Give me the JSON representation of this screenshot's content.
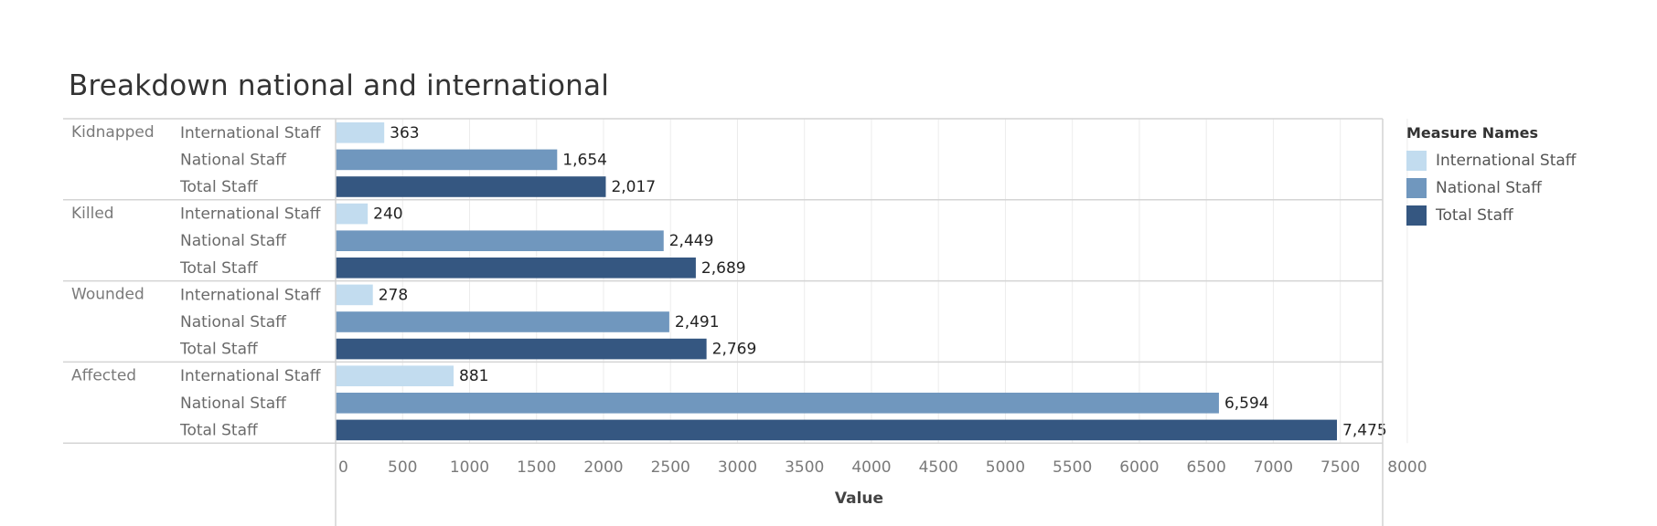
{
  "title": "Breakdown national and international",
  "chart_data": {
    "type": "bar",
    "orientation": "horizontal",
    "groups": [
      {
        "name": "Kidnapped",
        "rows": [
          {
            "label": "International Staff",
            "value": 363,
            "display": "363"
          },
          {
            "label": "National Staff",
            "value": 1654,
            "display": "1,654"
          },
          {
            "label": "Total Staff",
            "value": 2017,
            "display": "2,017"
          }
        ]
      },
      {
        "name": "Killed",
        "rows": [
          {
            "label": "International Staff",
            "value": 240,
            "display": "240"
          },
          {
            "label": "National Staff",
            "value": 2449,
            "display": "2,449"
          },
          {
            "label": "Total Staff",
            "value": 2689,
            "display": "2,689"
          }
        ]
      },
      {
        "name": "Wounded",
        "rows": [
          {
            "label": "International Staff",
            "value": 278,
            "display": "278"
          },
          {
            "label": "National Staff",
            "value": 2491,
            "display": "2,491"
          },
          {
            "label": "Total Staff",
            "value": 2769,
            "display": "2,769"
          }
        ]
      },
      {
        "name": "Affected",
        "rows": [
          {
            "label": "International Staff",
            "value": 881,
            "display": "881"
          },
          {
            "label": "National Staff",
            "value": 6594,
            "display": "6,594"
          },
          {
            "label": "Total Staff",
            "value": 7475,
            "display": "7,475"
          }
        ]
      }
    ],
    "xlabel": "Value",
    "xlim": [
      0,
      8300
    ],
    "xticks": [
      0,
      500,
      1000,
      1500,
      2000,
      2500,
      3000,
      3500,
      4000,
      4500,
      5000,
      5500,
      6000,
      6500,
      7000,
      7500,
      8000
    ],
    "grid": true,
    "legend": {
      "title": "Measure Names",
      "position": "right",
      "items": [
        {
          "label": "International Staff",
          "color": "#c2dcef"
        },
        {
          "label": "National Staff",
          "color": "#7097be"
        },
        {
          "label": "Total Staff",
          "color": "#355781"
        }
      ]
    }
  }
}
